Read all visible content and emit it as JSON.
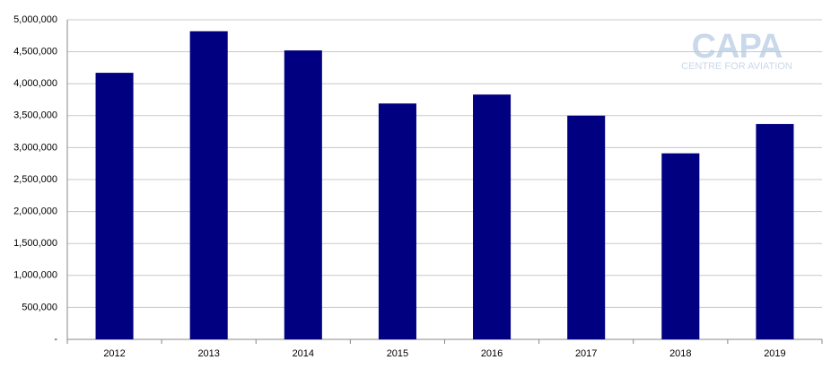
{
  "chart_data": {
    "type": "bar",
    "categories": [
      "2012",
      "2013",
      "2014",
      "2015",
      "2016",
      "2017",
      "2018",
      "2019"
    ],
    "values": [
      4170000,
      4820000,
      4520000,
      3690000,
      3830000,
      3500000,
      2910000,
      3370000
    ],
    "color": "#000080",
    "ylim": [
      0,
      5000000
    ],
    "yticks": [
      {
        "value": 0,
        "label": "-"
      },
      {
        "value": 500000,
        "label": "500,000"
      },
      {
        "value": 1000000,
        "label": "1,000,000"
      },
      {
        "value": 1500000,
        "label": "1,500,000"
      },
      {
        "value": 2000000,
        "label": "2,000,000"
      },
      {
        "value": 2500000,
        "label": "2,500,000"
      },
      {
        "value": 3000000,
        "label": "3,000,000"
      },
      {
        "value": 3500000,
        "label": "3,500,000"
      },
      {
        "value": 4000000,
        "label": "4,000,000"
      },
      {
        "value": 4500000,
        "label": "4,500,000"
      },
      {
        "value": 5000000,
        "label": "5,000,000"
      }
    ],
    "grid": true,
    "watermark": {
      "title": "CAPA",
      "subtitle": "CENTRE FOR AVIATION"
    }
  }
}
